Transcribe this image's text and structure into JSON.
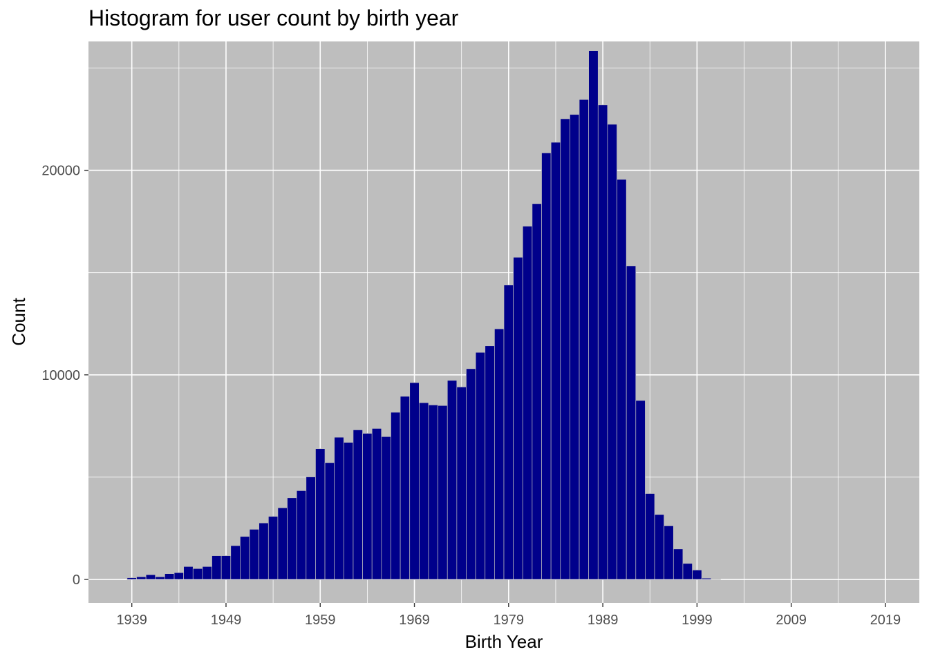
{
  "chart_data": {
    "type": "bar",
    "title": "Histogram for user count by birth year",
    "xlabel": "Birth Year",
    "ylabel": "Count",
    "xlim": [
      1934.4,
      2022.6
    ],
    "ylim": [
      -1150,
      26300
    ],
    "x_ticks": [
      1939,
      1949,
      1959,
      1969,
      1979,
      1989,
      1999,
      2009,
      2019
    ],
    "y_ticks": [
      0,
      10000,
      20000
    ],
    "grid": true,
    "panel_background": "#bebebe",
    "bar_color": "#00008b",
    "grid_color": "#ffffff",
    "x": [
      1939,
      1940,
      1941,
      1942,
      1943,
      1944,
      1945,
      1946,
      1947,
      1948,
      1949,
      1950,
      1951,
      1952,
      1953,
      1954,
      1955,
      1956,
      1957,
      1958,
      1959,
      1960,
      1961,
      1962,
      1963,
      1964,
      1965,
      1966,
      1967,
      1968,
      1969,
      1970,
      1971,
      1972,
      1973,
      1974,
      1975,
      1976,
      1977,
      1978,
      1979,
      1980,
      1981,
      1982,
      1983,
      1984,
      1985,
      1986,
      1987,
      1988,
      1989,
      1990,
      1991,
      1992,
      1993,
      1994,
      1995,
      1996,
      1997,
      1998,
      1999,
      2000,
      2001
    ],
    "values": [
      80,
      130,
      230,
      130,
      280,
      330,
      630,
      530,
      630,
      1160,
      1160,
      1650,
      2100,
      2450,
      2760,
      3080,
      3500,
      3990,
      4340,
      5010,
      6390,
      5710,
      6950,
      6700,
      7310,
      7140,
      7380,
      6980,
      8170,
      8950,
      9620,
      8640,
      8530,
      8500,
      9730,
      9410,
      10300,
      11100,
      11420,
      12250,
      14390,
      15750,
      17270,
      18370,
      20850,
      21370,
      22520,
      22730,
      23460,
      25840,
      23200,
      22250,
      19560,
      15330,
      8750,
      4200,
      3170,
      2620,
      1490,
      780,
      460,
      60,
      20
    ]
  }
}
